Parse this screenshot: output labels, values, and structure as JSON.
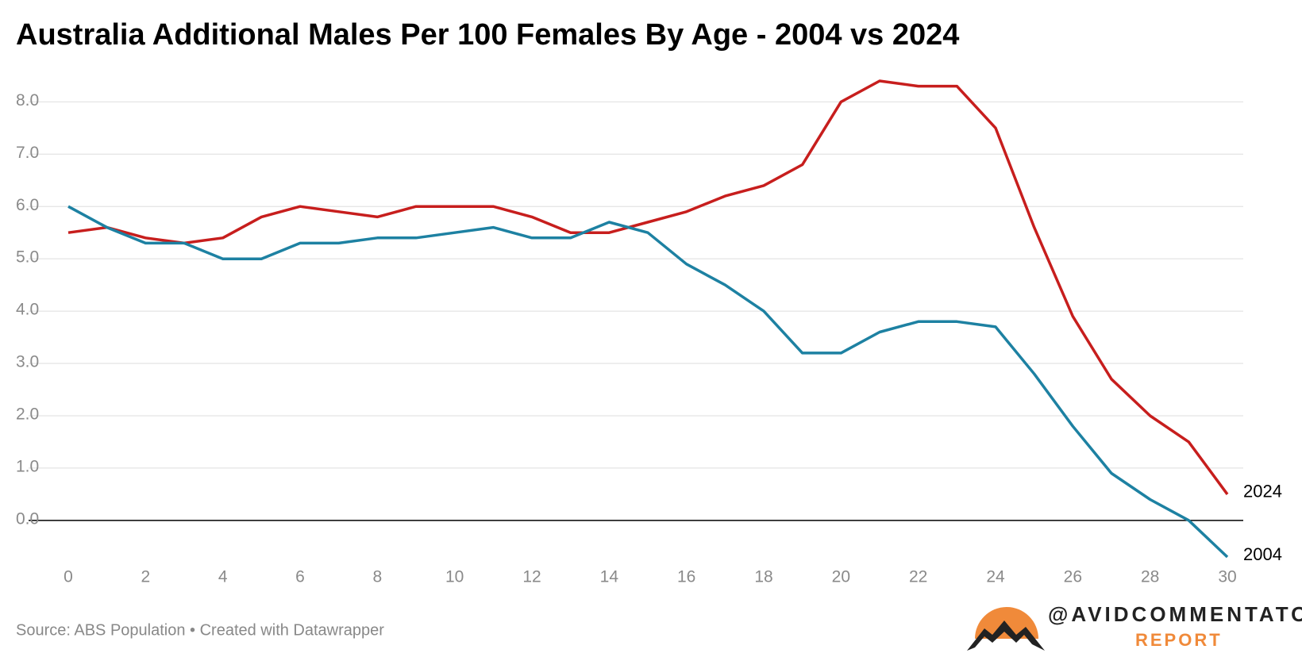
{
  "chart_data": {
    "type": "line",
    "title": "Australia Additional Males Per 100 Females By Age - 2004 vs 2024",
    "source": "Source: ABS Population • Created with Datawrapper",
    "brand": {
      "handle": "@AVIDCOMMENTATOR",
      "name": "REPORT"
    },
    "x": [
      0,
      1,
      2,
      3,
      4,
      5,
      6,
      7,
      8,
      9,
      10,
      11,
      12,
      13,
      14,
      15,
      16,
      17,
      18,
      19,
      20,
      21,
      22,
      23,
      24,
      25,
      26,
      27,
      28,
      29,
      30
    ],
    "series": [
      {
        "name": "2024",
        "color": "#c71e1d",
        "values": [
          5.5,
          5.6,
          5.4,
          5.3,
          5.4,
          5.8,
          6.0,
          5.9,
          5.8,
          6.0,
          6.0,
          6.0,
          5.8,
          5.5,
          5.5,
          5.7,
          5.9,
          6.2,
          6.4,
          6.8,
          8.0,
          8.4,
          8.3,
          8.3,
          7.5,
          5.6,
          3.9,
          2.7,
          2.0,
          1.5,
          0.5
        ]
      },
      {
        "name": "2004",
        "color": "#1d81a2",
        "values": [
          6.0,
          5.6,
          5.3,
          5.3,
          5.0,
          5.0,
          5.3,
          5.3,
          5.4,
          5.4,
          5.5,
          5.6,
          5.4,
          5.4,
          5.7,
          5.5,
          4.9,
          4.5,
          4.0,
          3.2,
          3.2,
          3.6,
          3.8,
          3.8,
          3.7,
          2.8,
          1.8,
          0.9,
          0.4,
          0.0,
          -0.7
        ]
      }
    ],
    "xlim": [
      0,
      30
    ],
    "xticks": [
      0,
      2,
      4,
      6,
      8,
      10,
      12,
      14,
      16,
      18,
      20,
      22,
      24,
      26,
      28,
      30
    ],
    "ylim": [
      -0.7,
      8.4
    ],
    "yticks": [
      {
        "value": 0,
        "label": "0.0"
      },
      {
        "value": 1,
        "label": "1.0"
      },
      {
        "value": 2,
        "label": "2.0"
      },
      {
        "value": 3,
        "label": "3.0"
      },
      {
        "value": 4,
        "label": "4.0"
      },
      {
        "value": 5,
        "label": "5.0"
      },
      {
        "value": 6,
        "label": "6.0"
      },
      {
        "value": 7,
        "label": "7.0"
      },
      {
        "value": 8,
        "label": "8.0"
      }
    ],
    "grid": true
  }
}
